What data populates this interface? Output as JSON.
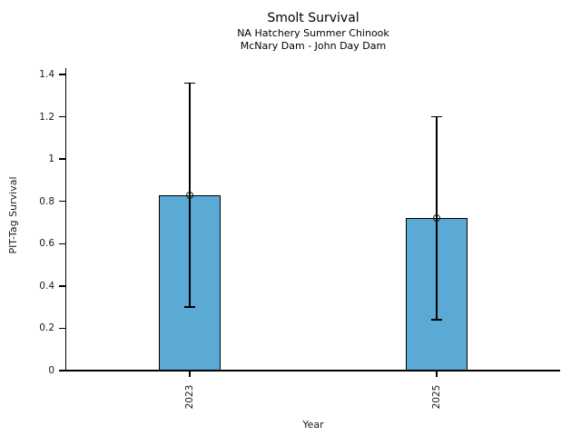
{
  "chart_data": {
    "type": "bar",
    "title": "Smolt Survival",
    "subtitle1": "NA Hatchery Summer Chinook",
    "subtitle2": "McNary Dam - John Day Dam",
    "xlabel": "Year",
    "ylabel": "PIT-Tag Survival",
    "categories": [
      "2023",
      "2025"
    ],
    "values": [
      0.83,
      0.72
    ],
    "error_low": [
      0.3,
      0.24
    ],
    "error_high": [
      1.36,
      1.2
    ],
    "ylim": [
      0,
      1.43
    ],
    "yticks": [
      0,
      0.2,
      0.4,
      0.6,
      0.8,
      1,
      1.2,
      1.4
    ],
    "ytick_labels": [
      "0",
      "0.2",
      "0.4",
      "0.6",
      "0.8",
      "1",
      "1.2",
      "1.4"
    ],
    "grid": false,
    "legend": "none",
    "bar_color": "#5BAAD5",
    "bar_edge_color": "#000000",
    "error_bar_color": "#000000",
    "marker": "open-circle",
    "background_color": "#ffffff"
  }
}
